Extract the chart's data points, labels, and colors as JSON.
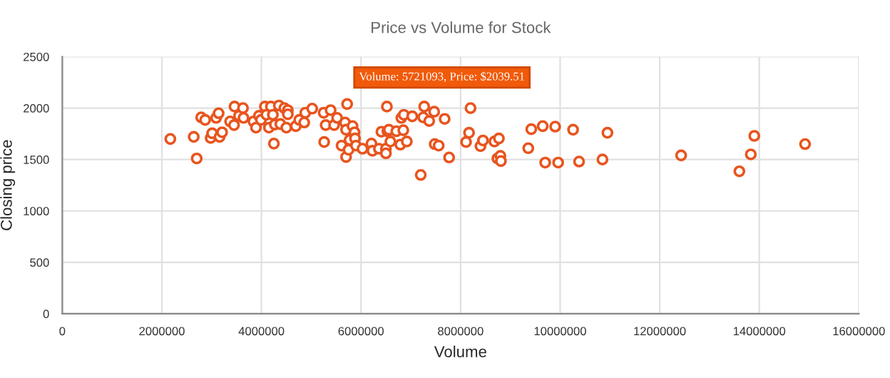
{
  "chart_data": {
    "type": "scatter",
    "title": "Price vs Volume for Stock",
    "xlabel": "Volume",
    "ylabel": "Closing price",
    "x": [
      2170000,
      2640000,
      2700000,
      2790000,
      2870000,
      2980000,
      3010000,
      3090000,
      3140000,
      3160000,
      3210000,
      3370000,
      3450000,
      3460000,
      3550000,
      3630000,
      3640000,
      3840000,
      3890000,
      3950000,
      3990000,
      4070000,
      4100000,
      4150000,
      4190000,
      4230000,
      4250000,
      4270000,
      4350000,
      4380000,
      4460000,
      4500000,
      4530000,
      4530000,
      4690000,
      4760000,
      4860000,
      4880000,
      5020000,
      5250000,
      5260000,
      5290000,
      5390000,
      5460000,
      5520000,
      5610000,
      5680000,
      5721093,
      5700000,
      5700000,
      5750000,
      5770000,
      5830000,
      5870000,
      5880000,
      5900000,
      6030000,
      6210000,
      6230000,
      6360000,
      6410000,
      6500000,
      6500000,
      6520000,
      6530000,
      6560000,
      6590000,
      6710000,
      6790000,
      6810000,
      6850000,
      6860000,
      6920000,
      7030000,
      7200000,
      7250000,
      7270000,
      7370000,
      7470000,
      7480000,
      7560000,
      7680000,
      7770000,
      8200000,
      8170000,
      8110000,
      8400000,
      8450000,
      8680000,
      8770000,
      8740000,
      8800000,
      8810000,
      9360000,
      9420000,
      9650000,
      9700000,
      9900000,
      9960000,
      10260000,
      10380000,
      10850000,
      10950000,
      12430000,
      13600000,
      13830000,
      13900000,
      14920000
    ],
    "values": [
      1700,
      1720,
      1510,
      1910,
      1885,
      1710,
      1755,
      1905,
      1950,
      1720,
      1765,
      1870,
      1835,
      2015,
      1925,
      2000,
      1905,
      1870,
      1810,
      1925,
      1885,
      2015,
      1935,
      1810,
      2015,
      1935,
      1655,
      1840,
      2025,
      1845,
      2000,
      1810,
      1980,
      1940,
      1825,
      1885,
      1860,
      1955,
      1995,
      1955,
      1670,
      1835,
      1980,
      1835,
      1905,
      1635,
      1860,
      2039.51,
      1525,
      1790,
      1595,
      1690,
      1825,
      1765,
      1705,
      1635,
      1605,
      1655,
      1585,
      1605,
      1770,
      1605,
      1560,
      2015,
      1775,
      1790,
      1675,
      1775,
      1645,
      1905,
      1785,
      1935,
      1675,
      1920,
      1350,
      1910,
      2015,
      1875,
      1965,
      1650,
      1635,
      1895,
      1520,
      2000,
      1760,
      1670,
      1630,
      1685,
      1675,
      1705,
      1510,
      1535,
      1485,
      1610,
      1795,
      1825,
      1470,
      1820,
      1470,
      1790,
      1480,
      1500,
      1760,
      1540,
      1385,
      1550,
      1730,
      1650
    ],
    "color": "#e8541e",
    "marker": "circle",
    "grid": true,
    "xlim": [
      0,
      16000000
    ],
    "xticks": [
      0,
      2000000,
      4000000,
      6000000,
      8000000,
      10000000,
      12000000,
      14000000,
      16000000
    ],
    "ylim": [
      0,
      2500
    ],
    "yticks": [
      0,
      500,
      1000,
      1500,
      2000,
      2500
    ],
    "annotations": [
      {
        "text": "Volume: 5721093, Price: $2039.51",
        "x": 5721093,
        "y": 2039.51
      }
    ]
  }
}
